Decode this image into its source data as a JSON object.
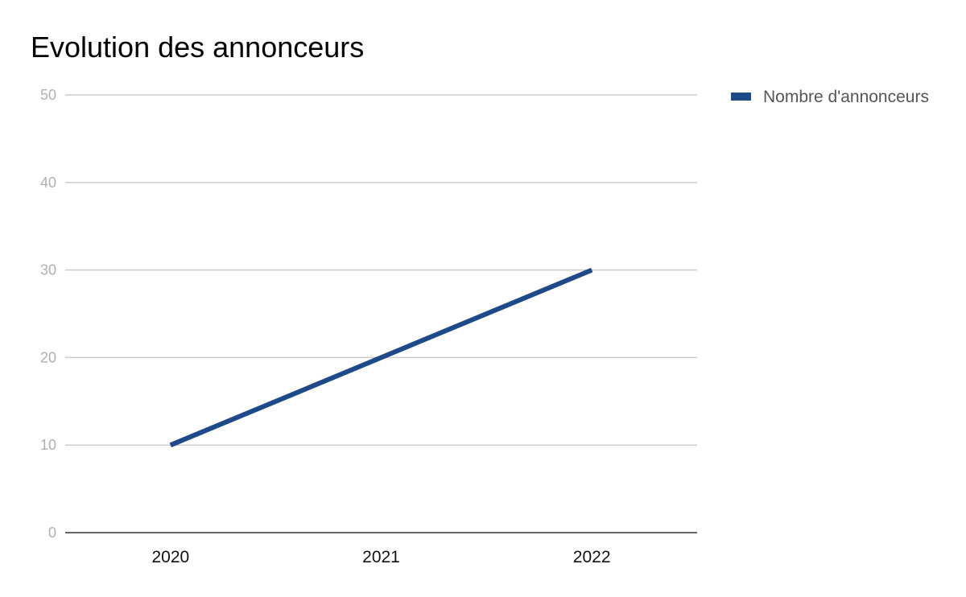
{
  "chart_data": {
    "type": "line",
    "title": "Evolution des annonceurs",
    "xlabel": "",
    "ylabel": "",
    "x": [
      "2020",
      "2021",
      "2022"
    ],
    "series": [
      {
        "name": "Nombre d'annonceurs",
        "values": [
          10,
          20,
          30
        ],
        "color": "#1f4a8a"
      }
    ],
    "ylim": [
      0,
      50
    ],
    "yticks": [
      0,
      10,
      20,
      30,
      40,
      50
    ],
    "grid": true,
    "legend": "right"
  }
}
